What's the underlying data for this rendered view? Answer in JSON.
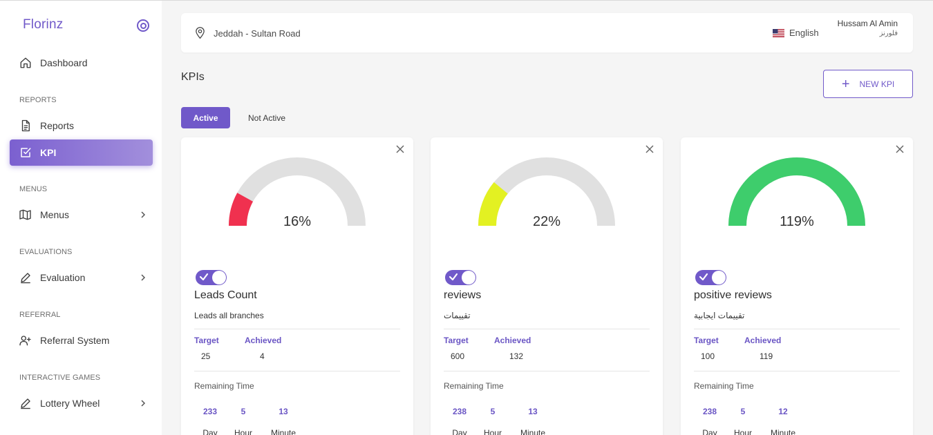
{
  "sidebar": {
    "brand": "Florinz",
    "sections": [
      {
        "label": "REPORTS"
      },
      {
        "label": "MENUS"
      },
      {
        "label": "EVALUATIONS"
      },
      {
        "label": "REFERRAL"
      },
      {
        "label": "INTERACTIVE GAMES"
      }
    ],
    "items": [
      {
        "label": "Dashboard",
        "icon": "home-icon"
      },
      {
        "label": "Reports",
        "icon": "document-icon"
      },
      {
        "label": "KPI",
        "icon": "checkbox-icon",
        "active": true
      },
      {
        "label": "Menus",
        "icon": "map-icon",
        "chevron": true
      },
      {
        "label": "Evaluation",
        "icon": "pencil-icon",
        "chevron": true
      },
      {
        "label": "Referral System",
        "icon": "user-plus-icon"
      },
      {
        "label": "Lottery Wheel",
        "icon": "pencil-icon",
        "chevron": true
      }
    ]
  },
  "header": {
    "location": "Jeddah - Sultan Road",
    "language": "English",
    "user_name": "Hussam Al Amin",
    "user_sub": "فلورنز"
  },
  "main": {
    "title": "KPIs",
    "new_kpi_label": "NEW KPI",
    "tabs": [
      {
        "label": "Active",
        "selected": true
      },
      {
        "label": "Not Active",
        "selected": false
      }
    ]
  },
  "labels": {
    "target": "Target",
    "achieved": "Achieved",
    "remaining_time": "Remaining Time",
    "day": "Day",
    "hour": "Hour",
    "minute": "Minute"
  },
  "kpis": [
    {
      "name": "Leads Count",
      "description": "Leads all branches",
      "target": "25",
      "achieved": "4",
      "percent_label": "16%",
      "progress": 0.16,
      "color": "#f0314f",
      "active": true,
      "remaining": {
        "day": "233",
        "hour": "5",
        "minute": "13"
      }
    },
    {
      "name": "reviews",
      "description": "تقييمات",
      "target": "600",
      "achieved": "132",
      "percent_label": "22%",
      "progress": 0.22,
      "color": "#e3f122",
      "active": true,
      "remaining": {
        "day": "238",
        "hour": "5",
        "minute": "13"
      }
    },
    {
      "name": "positive reviews",
      "description": "تقييمات ايجابية",
      "target": "100",
      "achieved": "119",
      "percent_label": "119%",
      "progress": 1.0,
      "color": "#3ecd6c",
      "active": true,
      "remaining": {
        "day": "238",
        "hour": "5",
        "minute": "12"
      }
    }
  ],
  "colors": {
    "accent": "#7059c9",
    "gauge_track": "#e0e0e0"
  }
}
